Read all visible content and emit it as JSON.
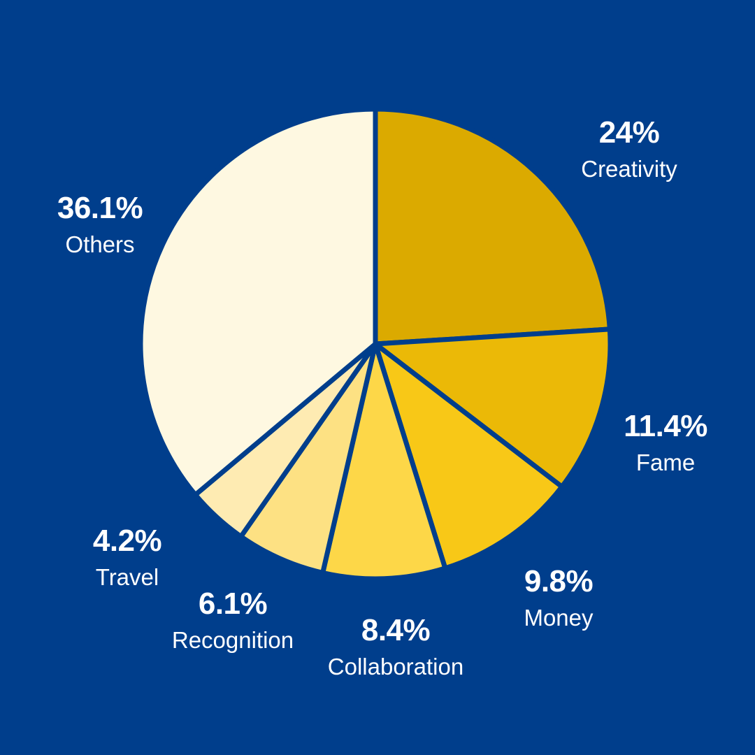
{
  "chart_data": {
    "type": "pie",
    "categories": [
      "Creativity",
      "Fame",
      "Money",
      "Collaboration",
      "Recognition",
      "Travel",
      "Others"
    ],
    "values": [
      24,
      11.4,
      9.8,
      8.4,
      6.1,
      4.2,
      36.1
    ],
    "value_labels": [
      "24%",
      "11.4%",
      "9.8%",
      "8.4%",
      "6.1%",
      "4.2%",
      "36.1%"
    ],
    "colors": [
      "#DBAA00",
      "#EBB907",
      "#F8C817",
      "#FDD748",
      "#FDE183",
      "#FEEBB2",
      "#FEF8E1"
    ],
    "start_angle_deg": 0,
    "direction": "clockwise",
    "background_color": "#003E8C",
    "separator_color": "#003E8C",
    "legend": "none",
    "title": ""
  }
}
